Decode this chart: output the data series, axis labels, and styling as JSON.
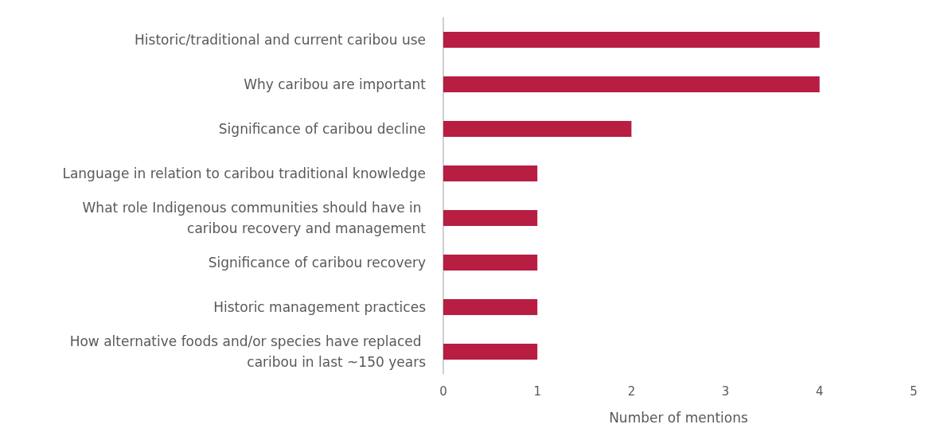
{
  "chart_data": {
    "type": "bar",
    "orientation": "horizontal",
    "xlabel": "Number of mentions",
    "categories": [
      "Historic/traditional and current caribou use",
      "Why caribou are important",
      "Significance of caribou decline",
      "Language in relation to caribou traditional knowledge",
      "What role Indigenous communities should have in caribou recovery and management",
      "Significance of caribou recovery",
      "Historic management practices",
      "How alternative foods and/or species have replaced caribou in last ~150 years"
    ],
    "values": [
      4,
      4,
      2,
      1,
      1,
      1,
      1,
      1
    ],
    "color": "#b81d42",
    "xlim": [
      0,
      5
    ],
    "xticks": [
      0,
      1,
      2,
      3,
      4,
      5
    ],
    "grid": false
  }
}
